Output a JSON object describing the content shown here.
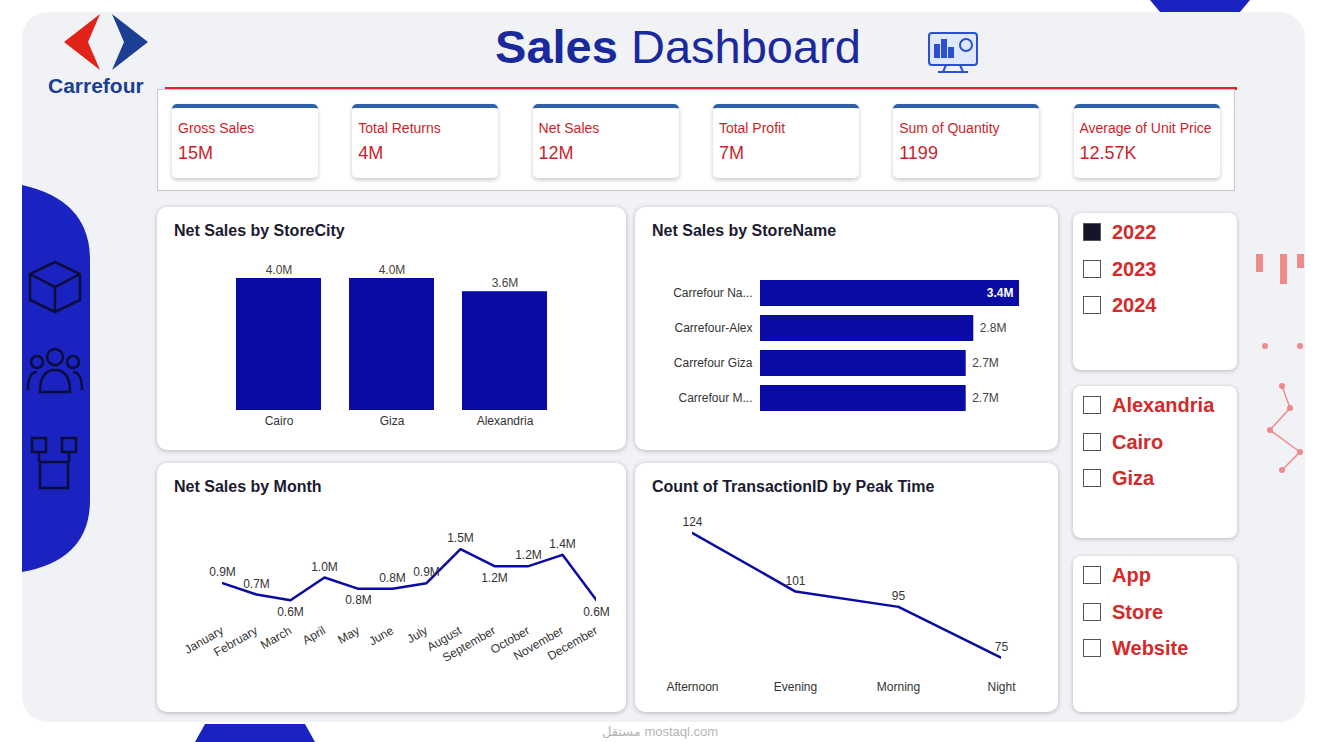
{
  "header": {
    "title": "Sales Dashboard",
    "brand": "Carrefour"
  },
  "kpis": [
    {
      "label": "Gross Sales",
      "value": "15M"
    },
    {
      "label": "Total Returns",
      "value": "4M"
    },
    {
      "label": "Net Sales",
      "value": "12M"
    },
    {
      "label": "Total Profit",
      "value": "7M"
    },
    {
      "label": "Sum of Quantity",
      "value": "1199"
    },
    {
      "label": "Average of Unit Price",
      "value": "12.57K"
    }
  ],
  "filters": [
    {
      "items": [
        "2022",
        "2023",
        "2024"
      ],
      "selected": [
        "2022"
      ]
    },
    {
      "items": [
        "Alexandria",
        "Cairo",
        "Giza"
      ],
      "selected": []
    },
    {
      "items": [
        "App",
        "Store",
        "Website"
      ],
      "selected": []
    }
  ],
  "watermark": [
    "مستقل",
    "mostaql.com"
  ],
  "chart_data": [
    {
      "type": "bar",
      "title": "Net Sales by StoreCity",
      "categories": [
        "Cairo",
        "Giza",
        "Alexandria"
      ],
      "values": [
        4.0,
        4.0,
        3.6
      ],
      "value_labels": [
        "4.0M",
        "4.0M",
        "3.6M"
      ],
      "color": "#0a0aa5",
      "ylim": [
        0,
        4
      ],
      "data_labels": true,
      "tick_labels": "x"
    },
    {
      "type": "bar",
      "orientation": "horizontal",
      "title": "Net Sales by StoreName",
      "categories": [
        "Carrefour Na...",
        "Carrefour-Alex",
        "Carrefour Giza",
        "Carrefour M..."
      ],
      "values": [
        3.4,
        2.8,
        2.7,
        2.7
      ],
      "value_labels": [
        "3.4M",
        "2.8M",
        "2.7M",
        "2.7M"
      ],
      "color": "#0a0aa5",
      "xlim": [
        0,
        3.4
      ],
      "data_labels": true,
      "tick_labels": "y"
    },
    {
      "type": "line",
      "title": "Net Sales by Month",
      "categories": [
        "January",
        "February",
        "March",
        "April",
        "May",
        "June",
        "July",
        "August",
        "September",
        "October",
        "November",
        "December"
      ],
      "values": [
        0.9,
        0.7,
        0.6,
        1.0,
        0.8,
        0.8,
        0.9,
        1.5,
        1.2,
        1.2,
        1.4,
        0.6
      ],
      "value_labels": [
        "0.9M",
        "0.7M",
        "0.6M",
        "1.0M",
        "0.8M",
        "0.8M",
        "0.9M",
        "1.5M",
        "1.2M",
        "1.2M",
        "1.4M",
        "0.6M"
      ],
      "color": "#0a0aa5",
      "ylim": [
        0.4,
        1.6
      ],
      "data_labels": true,
      "tick_labels": "x"
    },
    {
      "type": "line",
      "title": "Count of TransactionID by Peak Time",
      "categories": [
        "Afternoon",
        "Evening",
        "Morning",
        "Night"
      ],
      "values": [
        124,
        101,
        95,
        75
      ],
      "color": "#0a0aa5",
      "ylim": [
        70,
        125
      ],
      "data_labels": true,
      "tick_labels": "x"
    }
  ]
}
